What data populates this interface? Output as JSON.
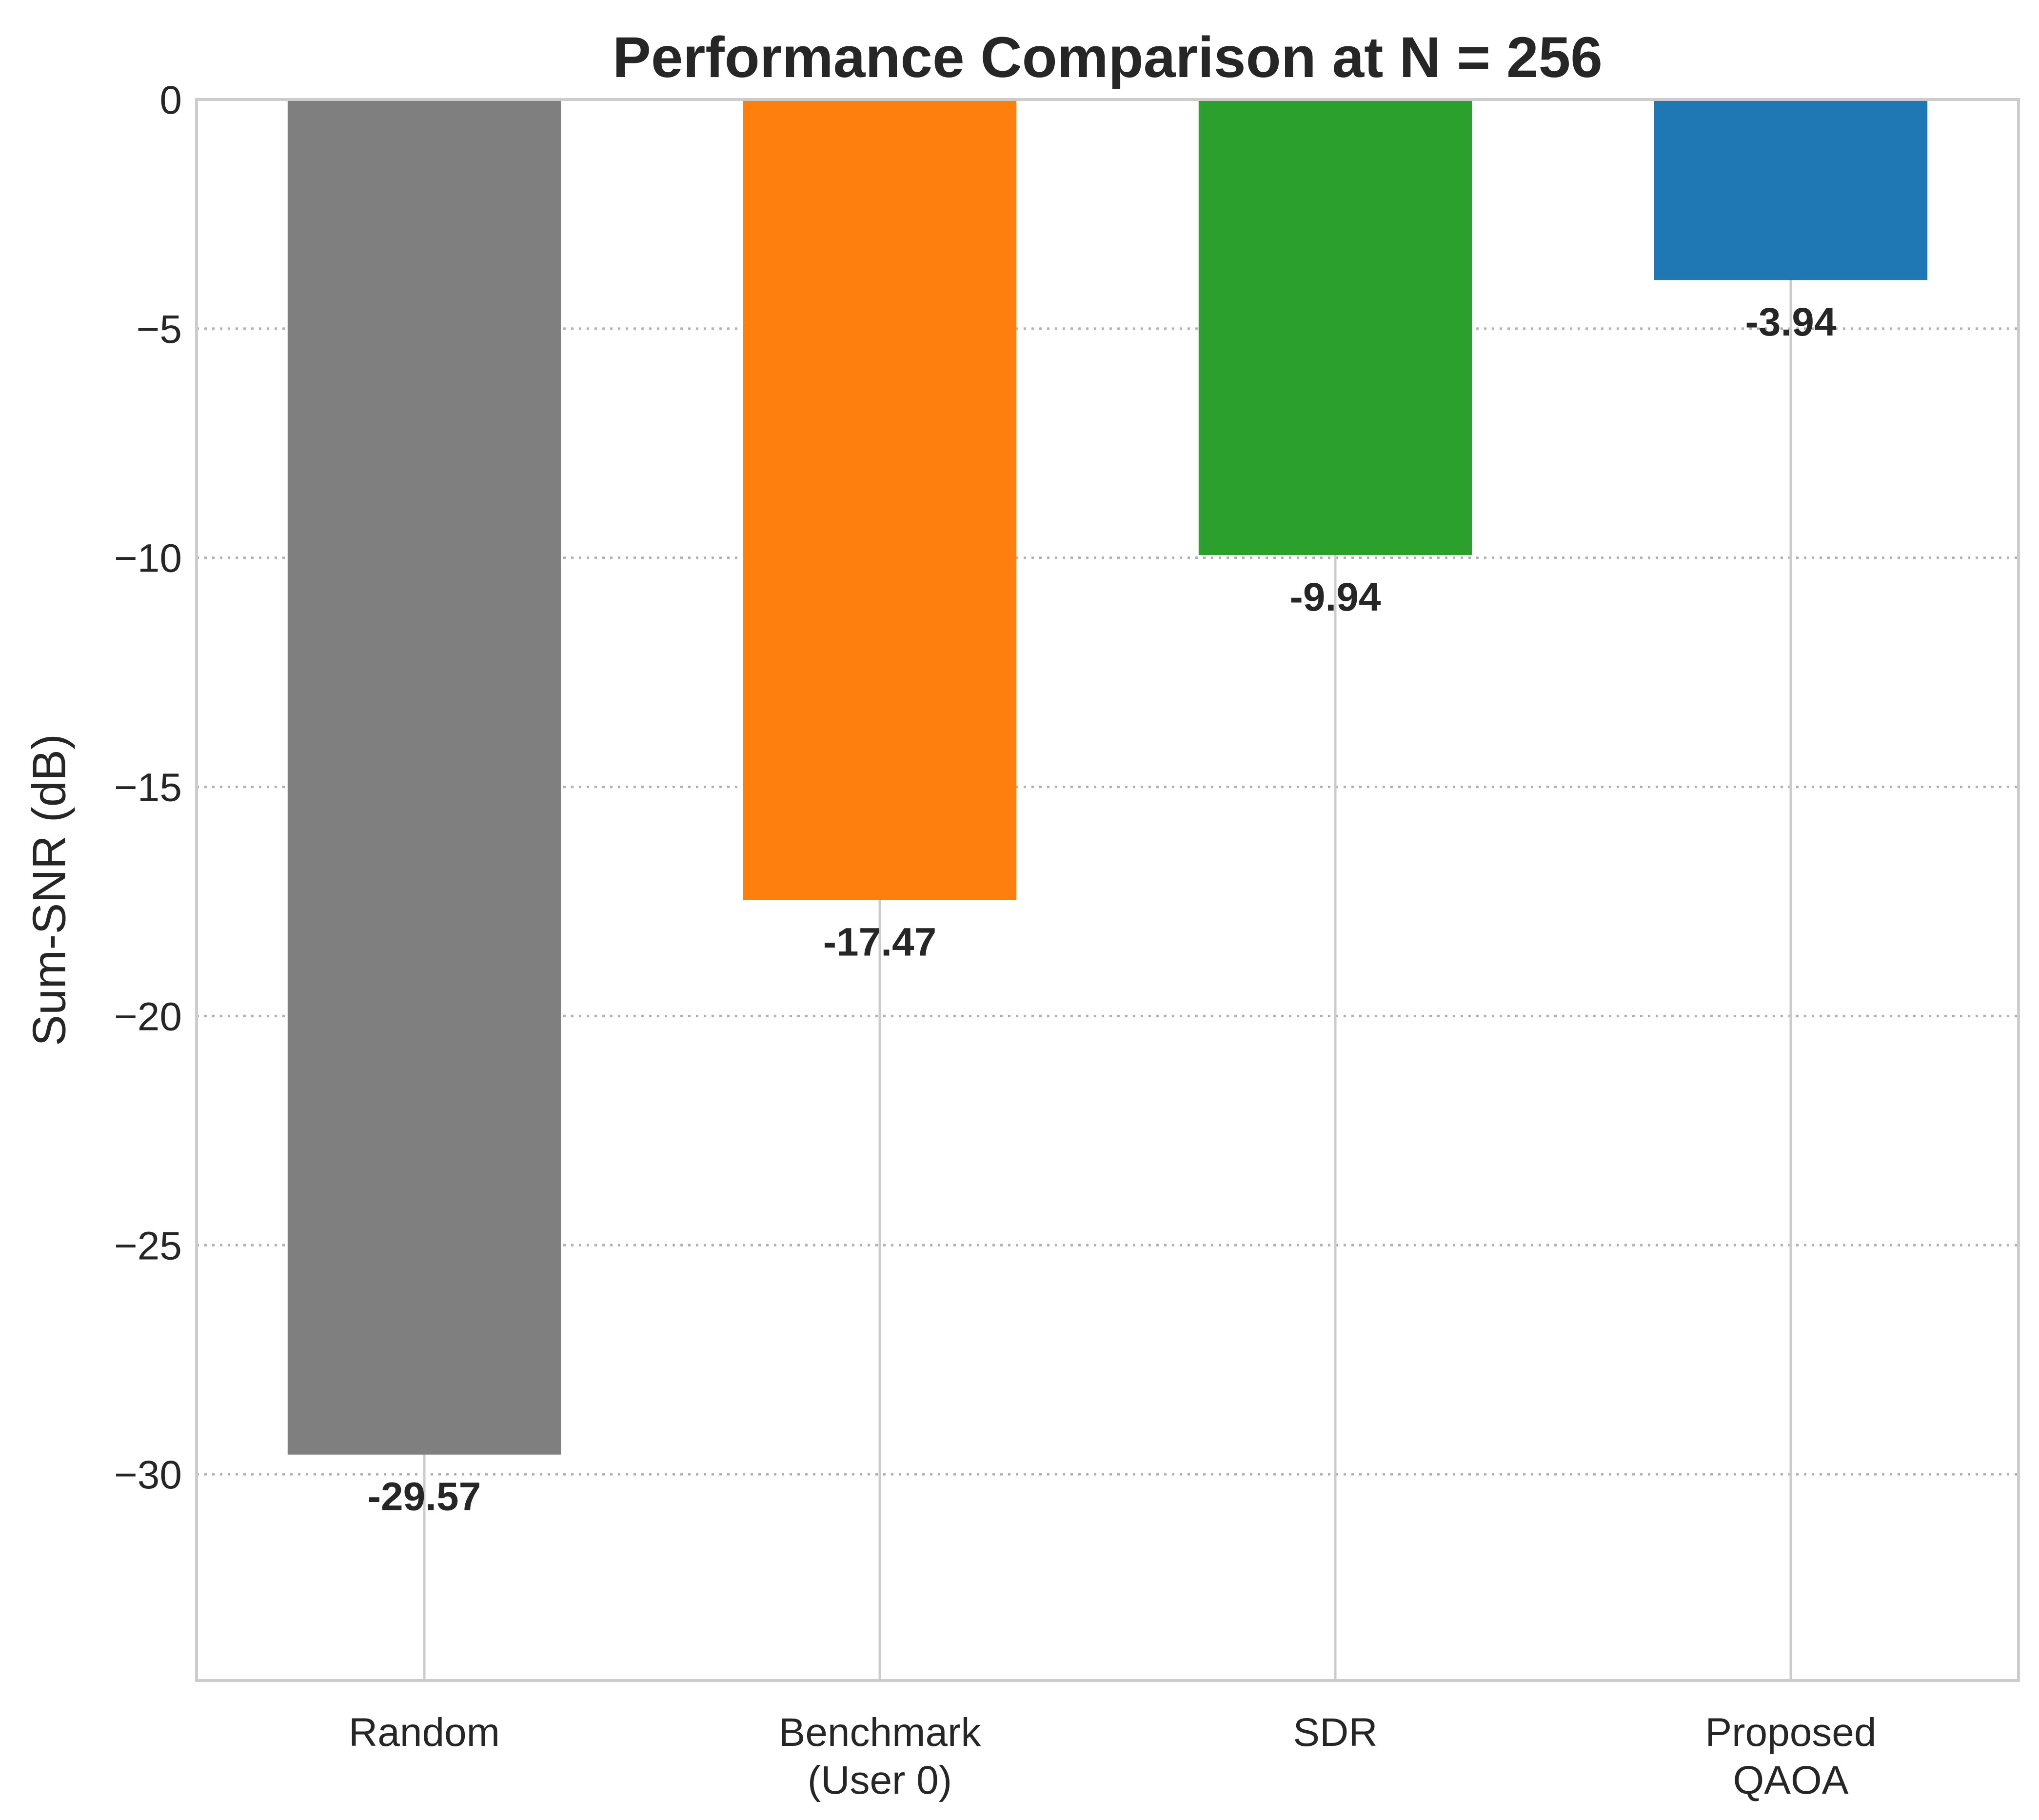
{
  "chart_data": {
    "type": "bar",
    "title": "Performance Comparison at N = 256",
    "xlabel": "",
    "ylabel": "Sum-SNR (dB)",
    "categories": [
      [
        "Random"
      ],
      [
        "Benchmark",
        "(User 0)"
      ],
      [
        "SDR"
      ],
      [
        "Proposed",
        "QAOA"
      ]
    ],
    "values": [
      -29.57,
      -17.47,
      -9.94,
      -3.94
    ],
    "value_labels": [
      "-29.57",
      "-17.47",
      "-9.94",
      "-3.94"
    ],
    "colors": [
      "#7f7f7f",
      "#ff7f0e",
      "#2ca02c",
      "#1f77b4"
    ],
    "ylim": [
      -34.5,
      0
    ],
    "yticks": [
      0,
      -5,
      -10,
      -15,
      -20,
      -25,
      -30
    ],
    "ytick_labels": [
      "0",
      "−5",
      "−10",
      "−15",
      "−20",
      "−25",
      "−30"
    ],
    "grid": true,
    "legend": "none"
  }
}
